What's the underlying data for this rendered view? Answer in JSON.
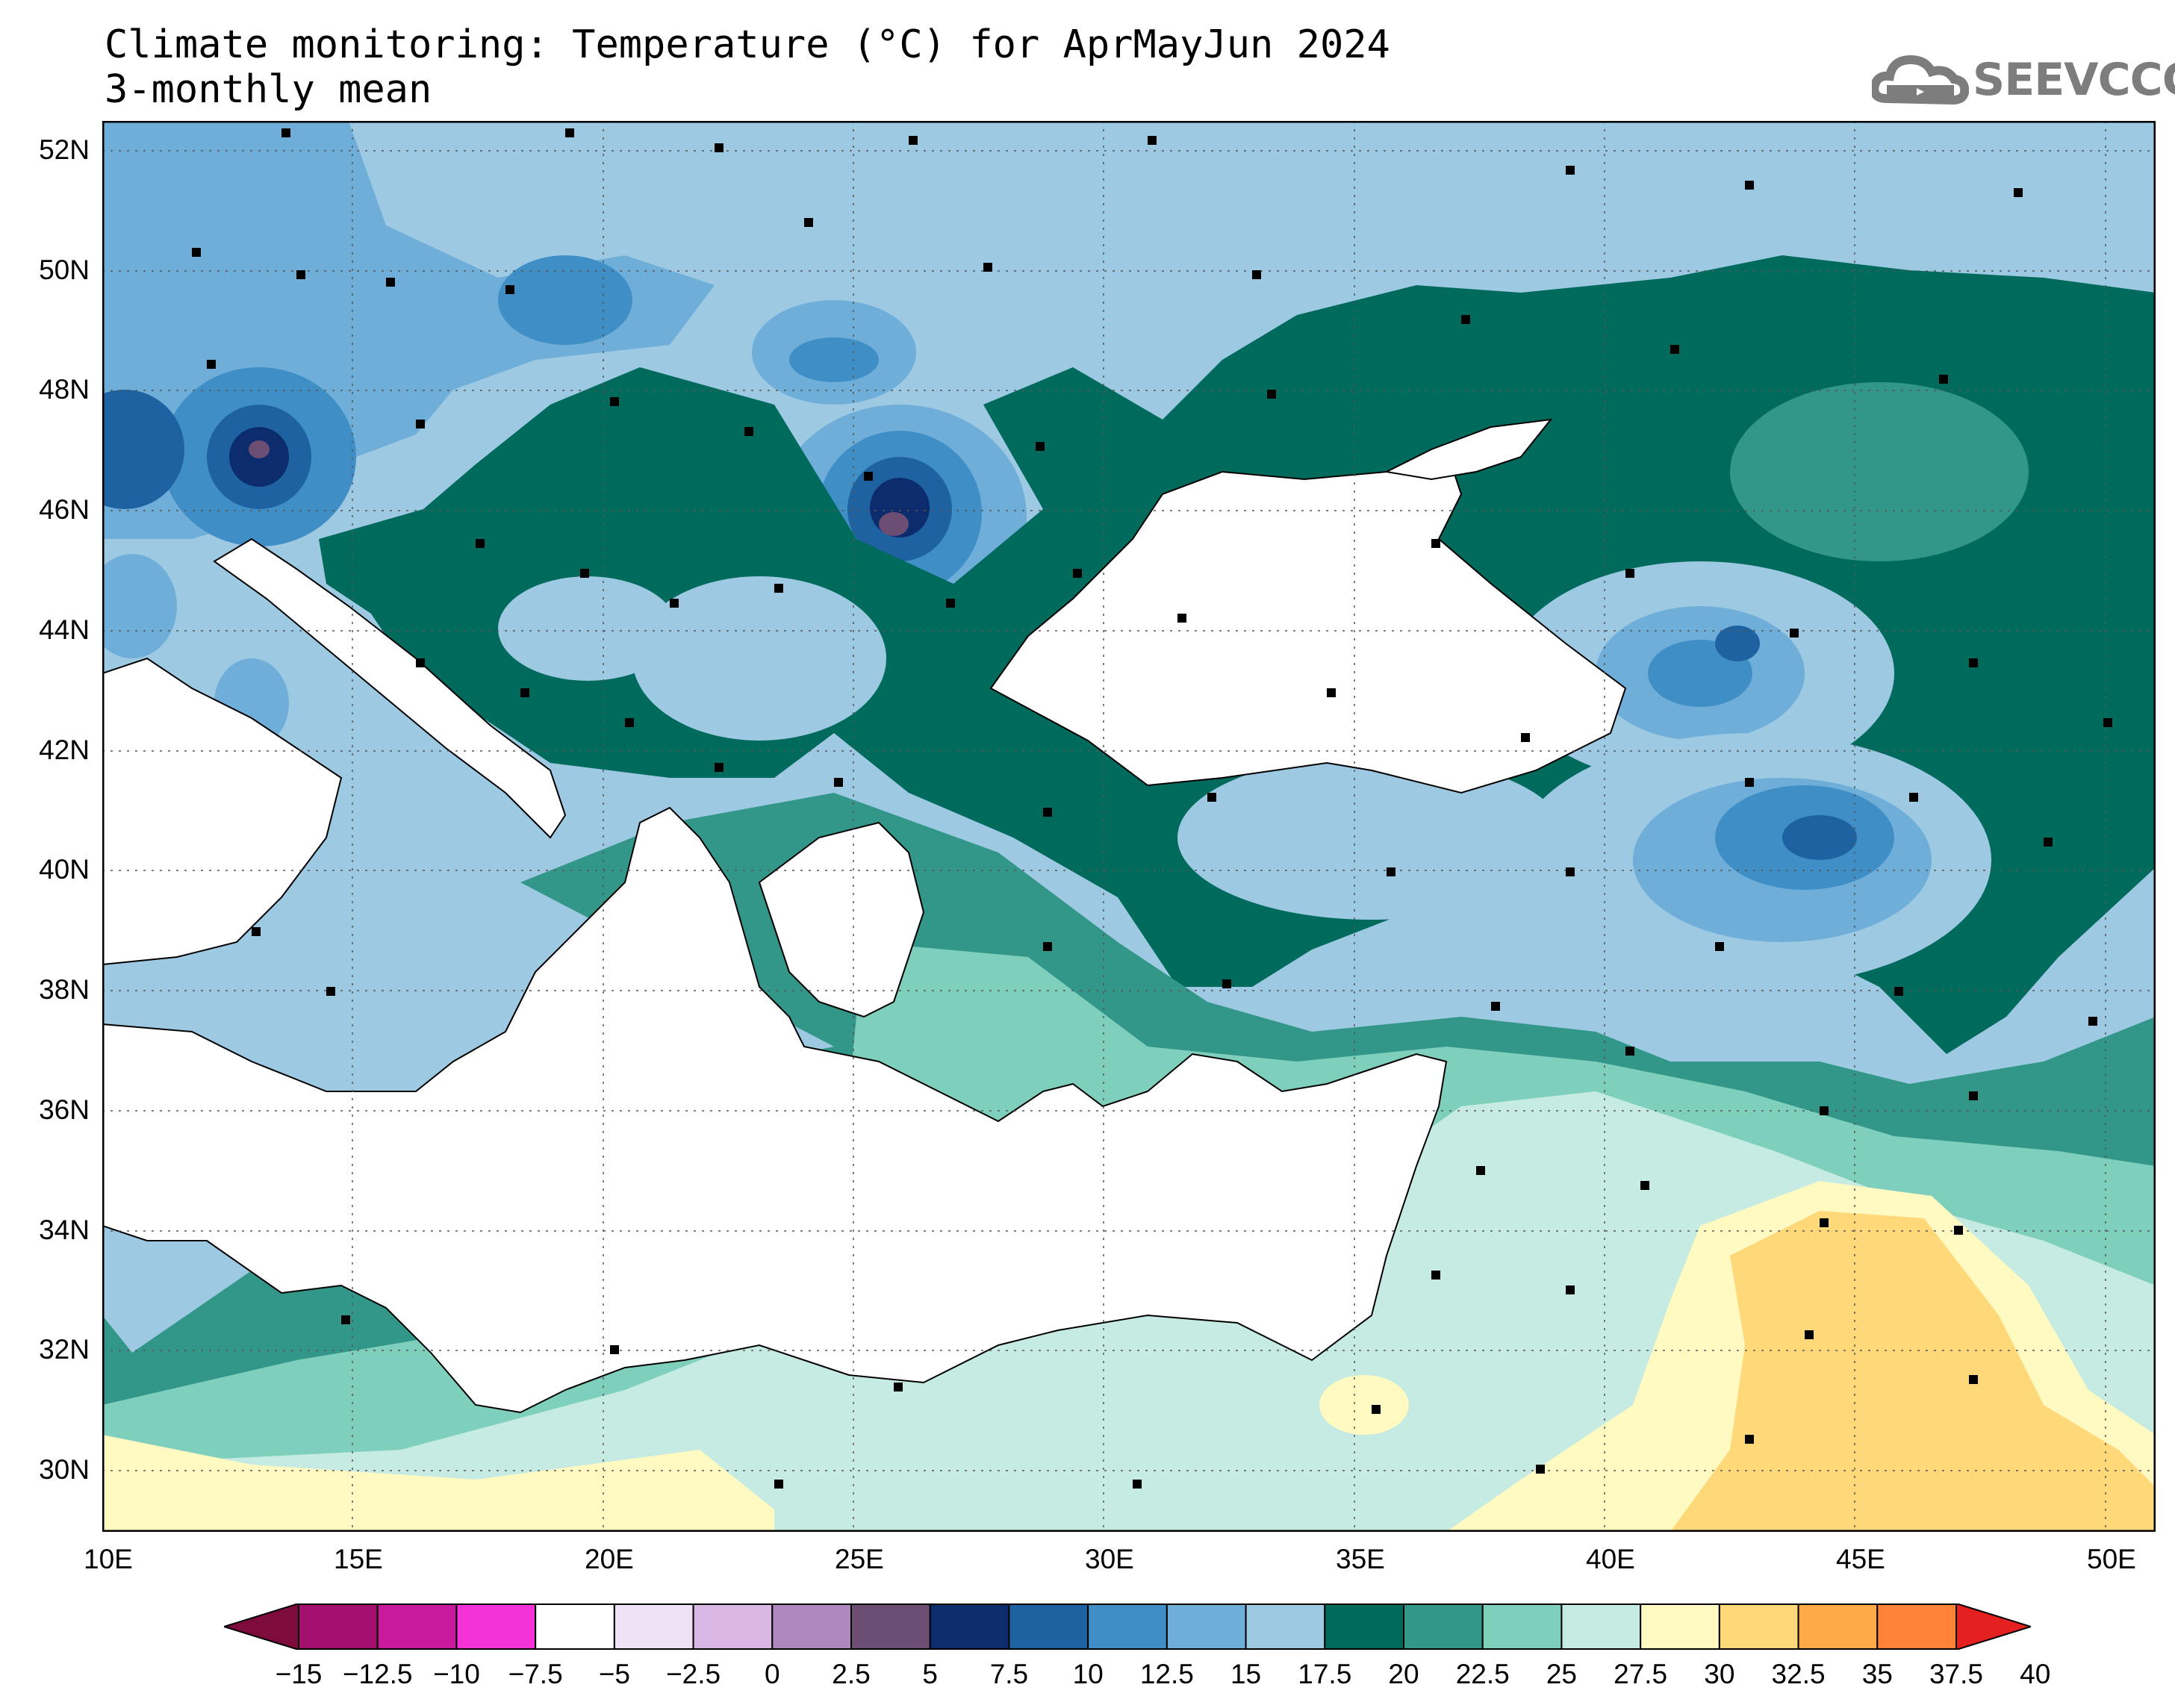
{
  "title": {
    "line1": "Climate monitoring: Temperature (°C) for AprMayJun 2024",
    "line2": "3-monthly mean"
  },
  "logo": {
    "text": "SEEVCCC",
    "icon": "cloud-icon"
  },
  "map": {
    "lon_range": [
      10,
      51
    ],
    "lat_range": [
      29,
      52.5
    ],
    "lat_ticks": [
      "52N",
      "50N",
      "48N",
      "46N",
      "44N",
      "42N",
      "40N",
      "38N",
      "36N",
      "34N",
      "32N",
      "30N"
    ],
    "lon_ticks": [
      "10E",
      "15E",
      "20E",
      "25E",
      "30E",
      "35E",
      "40E",
      "45E",
      "50E"
    ],
    "grid": true,
    "sea_color": "#ffffff"
  },
  "colorbar": {
    "labels": [
      "-15",
      "-12.5",
      "-10",
      "-7.5",
      "-5",
      "-2.5",
      "0",
      "2.5",
      "5",
      "7.5",
      "10",
      "12.5",
      "15",
      "17.5",
      "20",
      "22.5",
      "25",
      "27.5",
      "30",
      "32.5",
      "35",
      "37.5",
      "40"
    ],
    "colors": [
      "#8b0a4f",
      "#a3106e",
      "#c71a9d",
      "#f333d8",
      "#ffffff",
      "#efe2f6",
      "#d9b7e4",
      "#ad87bd",
      "#6c4e73",
      "#0c2c6d",
      "#1f62a1",
      "#3f8fc6",
      "#6eaed9",
      "#9dc9e2",
      "#006a5d",
      "#329688",
      "#7fcfbd",
      "#c6ebe2",
      "#fff9c2",
      "#ffd87a",
      "#ffaa46",
      "#ff8236",
      "#f24a28"
    ],
    "end_low": "#7d0b3c",
    "end_high": "#e52020"
  }
}
